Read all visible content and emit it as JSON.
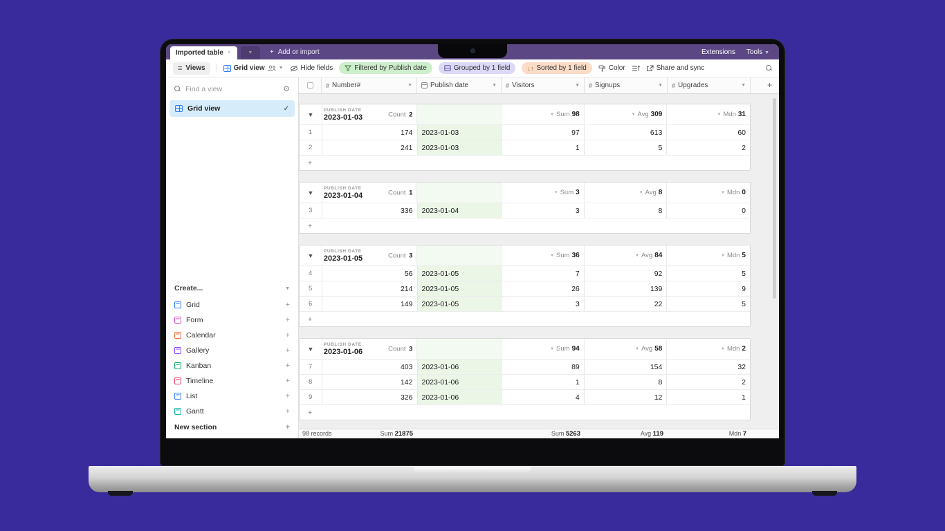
{
  "window": {
    "active_tab": "Imported table",
    "add_or_import": "Add or import",
    "extensions": "Extensions",
    "tools": "Tools"
  },
  "toolbar": {
    "views": "Views",
    "view_name": "Grid view",
    "hide_fields": "Hide fields",
    "filtered": "Filtered by Publish date",
    "grouped": "Grouped by 1 field",
    "sorted": "Sorted by 1 field",
    "sort_icon": "↓↑",
    "color": "Color",
    "share": "Share and sync"
  },
  "sidebar": {
    "find_placeholder": "Find a view",
    "selected_view": "Grid view",
    "create_label": "Create...",
    "create_items": [
      {
        "label": "Grid",
        "color": "#2d7ff9"
      },
      {
        "label": "Form",
        "color": "#e050c8"
      },
      {
        "label": "Calendar",
        "color": "#f8703a"
      },
      {
        "label": "Gallery",
        "color": "#8b46ff"
      },
      {
        "label": "Kanban",
        "color": "#16b06a"
      },
      {
        "label": "Timeline",
        "color": "#f23f66"
      },
      {
        "label": "List",
        "color": "#3b82f6"
      },
      {
        "label": "Gantt",
        "color": "#14b8a6"
      }
    ],
    "new_section": "New section"
  },
  "grid": {
    "columns": [
      {
        "name": "Number#",
        "icon": "hash"
      },
      {
        "name": "Publish date",
        "icon": "calendar"
      },
      {
        "name": "Visitors",
        "icon": "hash"
      },
      {
        "name": "Signups",
        "icon": "hash"
      },
      {
        "name": "Upgrades",
        "icon": "hash"
      }
    ],
    "group_field_label": "PUBLISH DATE",
    "count_label": "Count",
    "groups": [
      {
        "date": "2023-01-03",
        "count": 2,
        "sum": 98,
        "avg": 309,
        "mdn": 31,
        "rows": [
          {
            "n": 1,
            "number": 174,
            "date": "2023-01-03",
            "visitors": 97,
            "signups": 613,
            "upgrades": 60
          },
          {
            "n": 2,
            "number": 241,
            "date": "2023-01-03",
            "visitors": 1,
            "signups": 5,
            "upgrades": 2
          }
        ]
      },
      {
        "date": "2023-01-04",
        "count": 1,
        "sum": 3,
        "avg": 8,
        "mdn": 0,
        "rows": [
          {
            "n": 3,
            "number": 336,
            "date": "2023-01-04",
            "visitors": 3,
            "signups": 8,
            "upgrades": 0
          }
        ]
      },
      {
        "date": "2023-01-05",
        "count": 3,
        "sum": 36,
        "avg": 84,
        "mdn": 5,
        "rows": [
          {
            "n": 4,
            "number": 56,
            "date": "2023-01-05",
            "visitors": 7,
            "signups": 92,
            "upgrades": 5
          },
          {
            "n": 5,
            "number": 214,
            "date": "2023-01-05",
            "visitors": 26,
            "signups": 139,
            "upgrades": 9
          },
          {
            "n": 6,
            "number": 149,
            "date": "2023-01-05",
            "visitors": 3,
            "signups": 22,
            "upgrades": 5
          }
        ]
      },
      {
        "date": "2023-01-06",
        "count": 3,
        "sum": 94,
        "avg": 58,
        "mdn": 2,
        "rows": [
          {
            "n": 7,
            "number": 403,
            "date": "2023-01-06",
            "visitors": 89,
            "signups": 154,
            "upgrades": 32
          },
          {
            "n": 8,
            "number": 142,
            "date": "2023-01-06",
            "visitors": 1,
            "signups": 8,
            "upgrades": 2
          },
          {
            "n": 9,
            "number": 326,
            "date": "2023-01-06",
            "visitors": 4,
            "signups": 12,
            "upgrades": 1
          }
        ]
      }
    ],
    "agg_labels": {
      "sum": "Sum",
      "avg": "Avg",
      "mdn": "Mdn"
    },
    "add_label": "Add...",
    "footer": {
      "records": "98 records",
      "cells": [
        {
          "label": "Sum",
          "value": "21875"
        },
        {
          "label": "Sum",
          "value": "5263"
        },
        {
          "label": "Avg",
          "value": "119"
        },
        {
          "label": "Mdn",
          "value": "7"
        }
      ]
    }
  },
  "colors": {
    "page_bg": "#3a2b9c",
    "header_purple": "#5b4783",
    "pill_green": "#cdeecb",
    "pill_lavender": "#dcd9f7",
    "pill_peach": "#fadcc7",
    "selected_view_bg": "#d7ecfb",
    "date_cell_green": "#ebf6e7",
    "accent_blue": "#2d7ff9"
  }
}
